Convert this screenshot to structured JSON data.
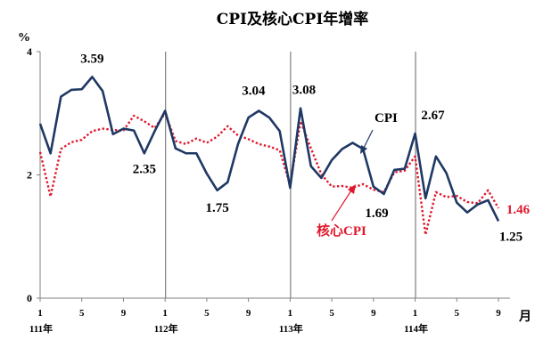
{
  "chart_data": {
    "type": "line",
    "title": "CPI及核心CPI年增率",
    "yunit": "%",
    "xunit": "月",
    "ylim": [
      0,
      4
    ],
    "yticks": [
      0,
      2,
      4
    ],
    "x": [
      1,
      2,
      3,
      4,
      5,
      6,
      7,
      8,
      9,
      10,
      11,
      12,
      13,
      14,
      15,
      16,
      17,
      18,
      19,
      20,
      21,
      22,
      23,
      24,
      25,
      26,
      27,
      28,
      29,
      30,
      31,
      32,
      33,
      34,
      35,
      36,
      37,
      38,
      39,
      40,
      41,
      42,
      43,
      44,
      45
    ],
    "xtick_labels": [
      {
        "x": 1,
        "label": "1"
      },
      {
        "x": 5,
        "label": "5"
      },
      {
        "x": 9,
        "label": "9"
      },
      {
        "x": 13,
        "label": "1"
      },
      {
        "x": 17,
        "label": "5"
      },
      {
        "x": 21,
        "label": "9"
      },
      {
        "x": 25,
        "label": "1"
      },
      {
        "x": 29,
        "label": "5"
      },
      {
        "x": 33,
        "label": "9"
      },
      {
        "x": 37,
        "label": "1"
      },
      {
        "x": 41,
        "label": "5"
      },
      {
        "x": 45,
        "label": "9"
      }
    ],
    "years": [
      {
        "x": 1,
        "label": "111年"
      },
      {
        "x": 13,
        "label": "112年"
      },
      {
        "x": 25,
        "label": "113年"
      },
      {
        "x": 37,
        "label": "114年"
      }
    ],
    "year_dividers": [
      13,
      25,
      37
    ],
    "series": [
      {
        "name": "CPI",
        "color": "#1f3864",
        "style": "solid",
        "values": [
          2.83,
          2.35,
          3.27,
          3.38,
          3.39,
          3.59,
          3.36,
          2.66,
          2.75,
          2.72,
          2.35,
          2.71,
          3.04,
          2.43,
          2.35,
          2.35,
          2.02,
          1.75,
          1.88,
          2.5,
          2.93,
          3.04,
          2.93,
          2.71,
          1.79,
          3.08,
          2.14,
          1.95,
          2.24,
          2.42,
          2.52,
          2.42,
          1.81,
          1.69,
          2.08,
          2.1,
          2.67,
          1.62,
          2.3,
          2.03,
          1.55,
          1.39,
          1.52,
          1.59,
          1.25
        ]
      },
      {
        "name": "核心CPI",
        "color": "#e0182d",
        "style": "dotted",
        "values": [
          2.37,
          1.65,
          2.42,
          2.53,
          2.57,
          2.71,
          2.75,
          2.73,
          2.72,
          2.96,
          2.87,
          2.76,
          3.0,
          2.55,
          2.5,
          2.59,
          2.52,
          2.62,
          2.79,
          2.64,
          2.58,
          2.5,
          2.46,
          2.4,
          1.83,
          2.87,
          2.43,
          2.01,
          1.81,
          1.82,
          1.79,
          1.85,
          1.76,
          1.72,
          2.04,
          2.07,
          2.3,
          1.03,
          1.72,
          1.64,
          1.66,
          1.56,
          1.54,
          1.75,
          1.46
        ]
      }
    ],
    "data_labels": [
      {
        "series": 0,
        "x": 6,
        "text": "3.59"
      },
      {
        "series": 0,
        "x": 11,
        "text": "2.35"
      },
      {
        "series": 0,
        "x": 18,
        "text": "1.75"
      },
      {
        "series": 0,
        "x": 22,
        "text": "3.04"
      },
      {
        "series": 0,
        "x": 26,
        "text": "3.08"
      },
      {
        "series": 0,
        "x": 34,
        "text": "1.69"
      },
      {
        "series": 0,
        "x": 37,
        "text": "2.67"
      },
      {
        "series": 0,
        "x": 45,
        "text": "1.25"
      },
      {
        "series": 1,
        "x": 45,
        "text": "1.46"
      }
    ]
  }
}
